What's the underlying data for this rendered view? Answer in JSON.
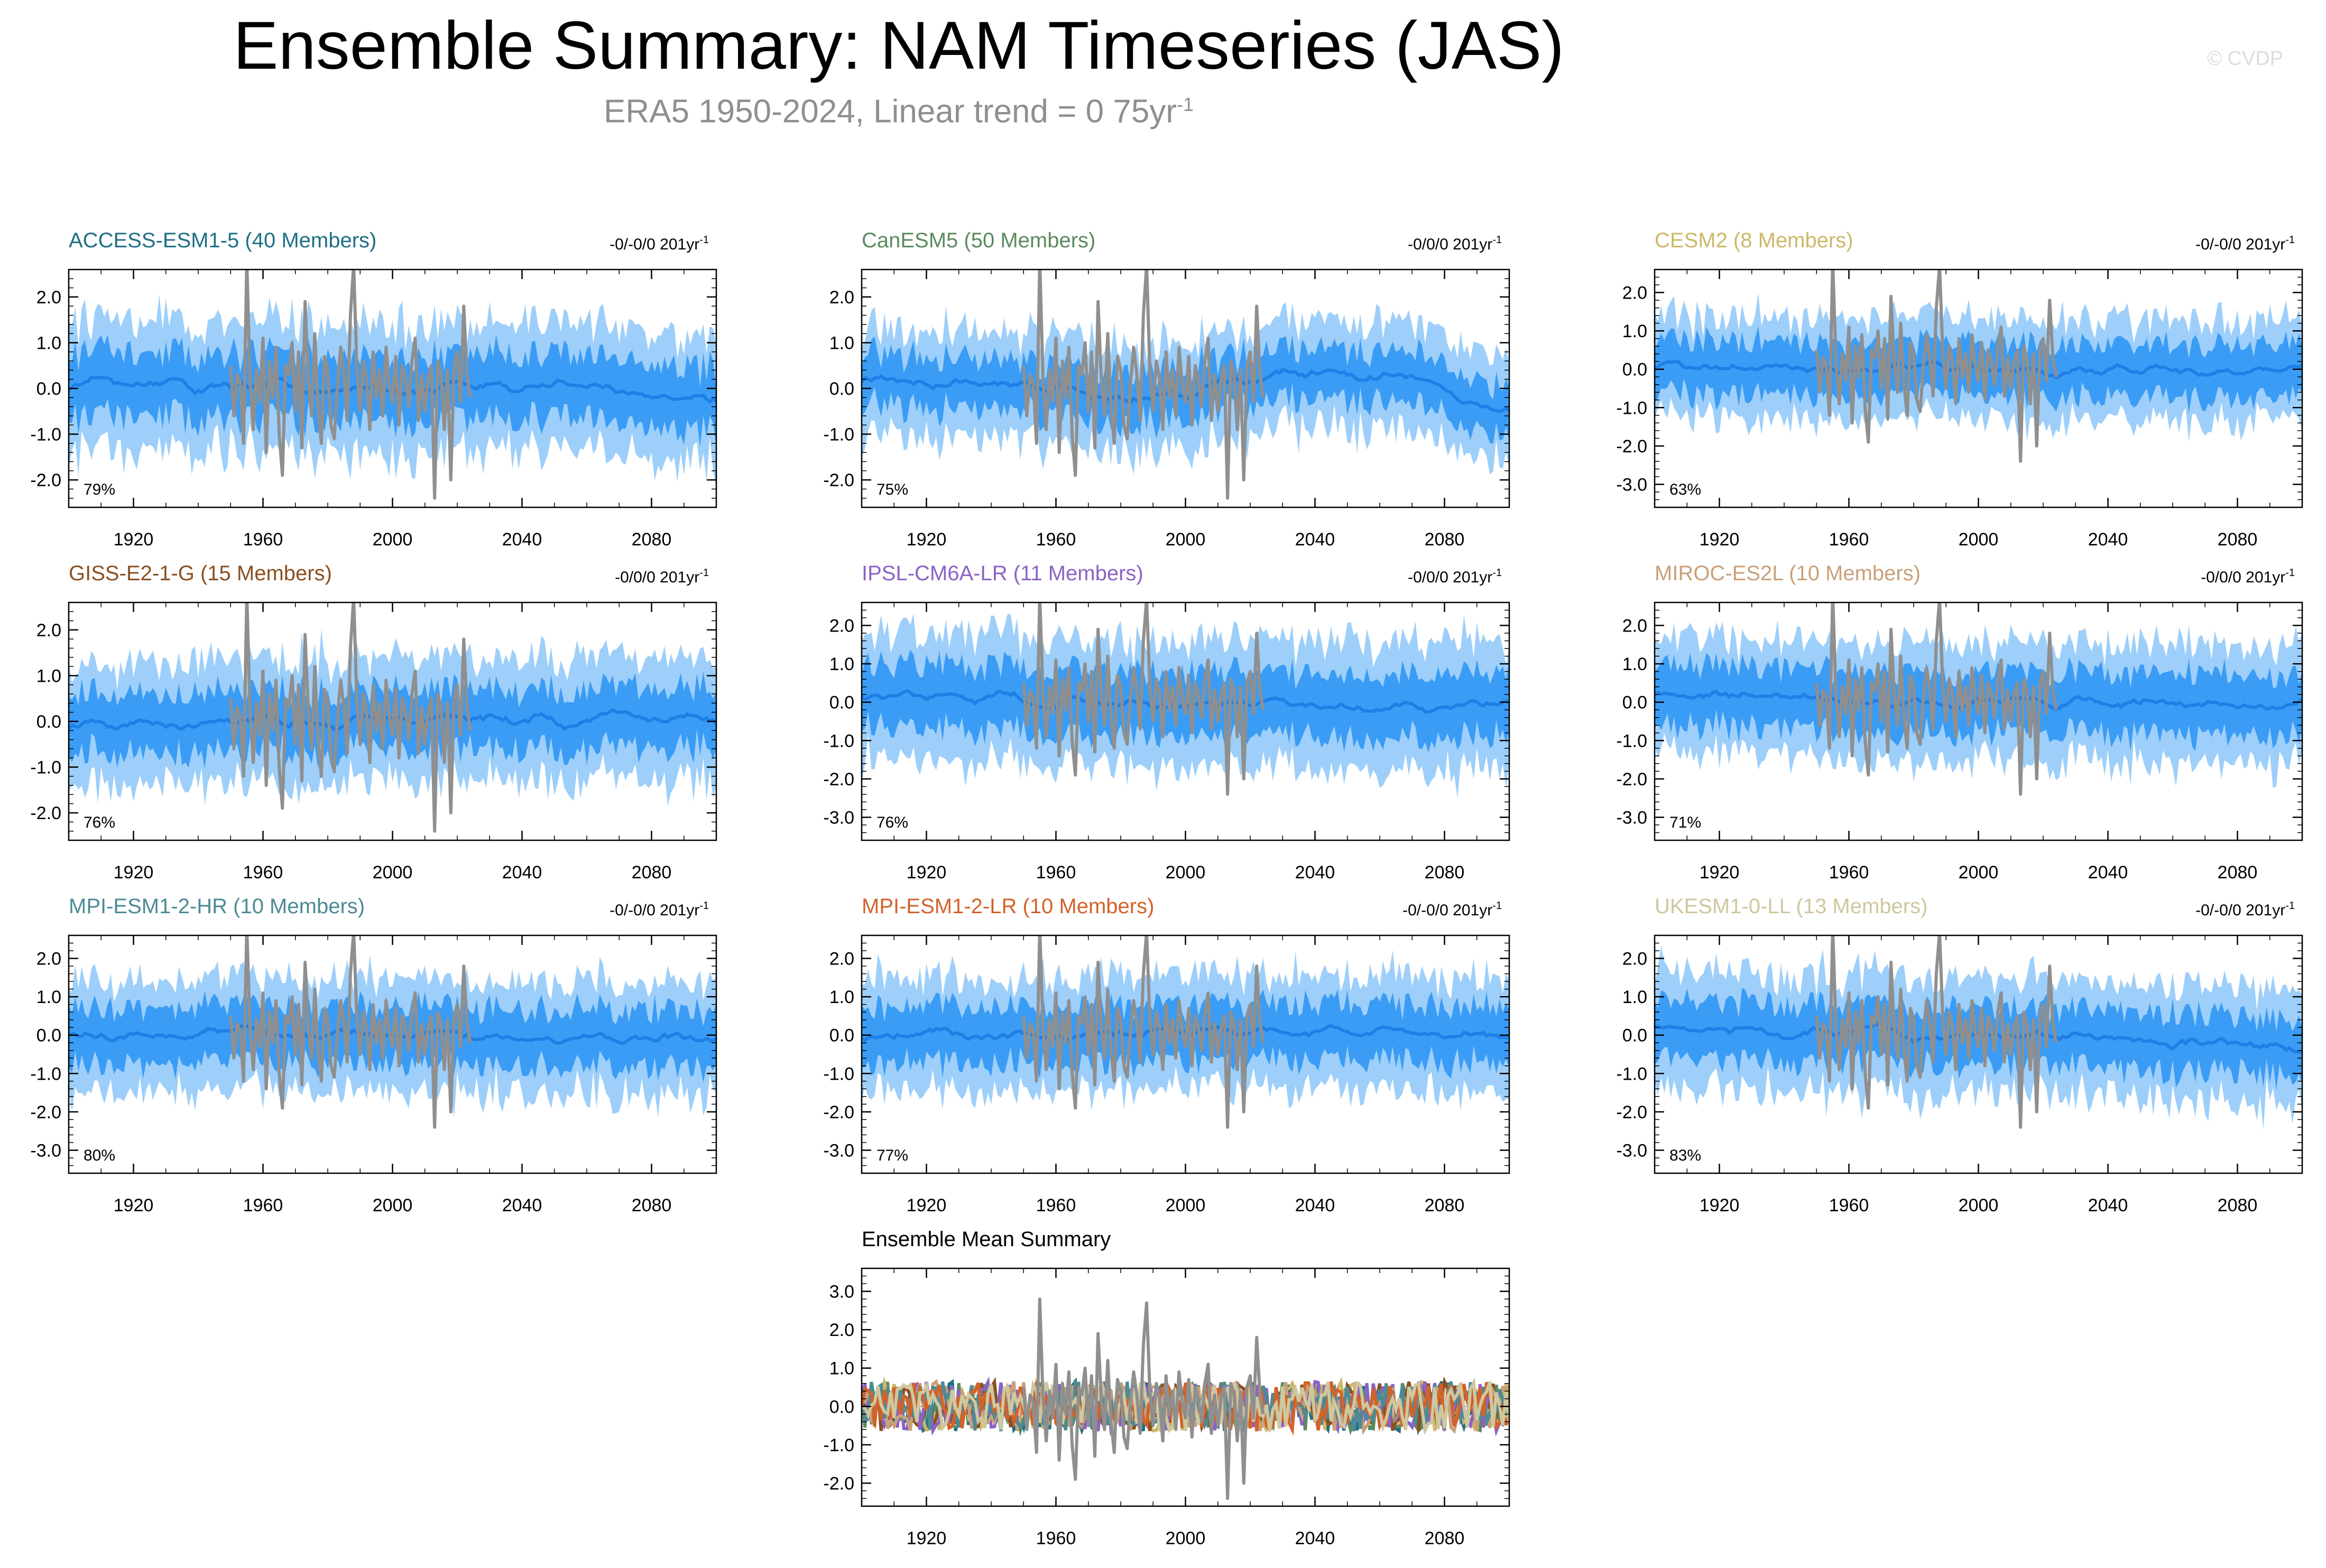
{
  "title": "Ensemble Summary: NAM Timeseries (JAS)",
  "subtitle": "ERA5 1950-2024, Linear trend = 0 75yr",
  "subtitle_sup": "-1",
  "watermark": "© CVDP",
  "colors": {
    "outer_band": "#9dcffa",
    "inner_band": "#3a9cf5",
    "ens_mean_line": "#1f7fe6",
    "obs_line": "#8f8f8f"
  },
  "chart_data": [
    {
      "type": "area",
      "title": "ACCESS-ESM1-5 (40 Members)",
      "title_color": "#1f6f85",
      "trend_label": "-0/-0/0 201yr",
      "trend_sup": "-1",
      "pct_label": "79%",
      "ylim": [
        -2.6,
        2.6
      ],
      "yticks": [
        2.0,
        1.0,
        0.0,
        -1.0,
        -2.0
      ],
      "ytick_labels": [
        "2.0",
        "1.0",
        "0.0",
        "-1.0",
        "-2.0"
      ],
      "xlim": [
        1900,
        2100
      ],
      "xticks": [
        1920,
        1960,
        2000,
        2040,
        2080
      ],
      "xtick_labels": [
        "1920",
        "1960",
        "2000",
        "2040",
        "2080"
      ],
      "seed": 11,
      "band_inner": 0.75,
      "band_outer": 1.5,
      "mean_shape": [
        [
          1900,
          0.1
        ],
        [
          1960,
          0.0
        ],
        [
          2000,
          -0.05
        ],
        [
          2050,
          0.1
        ],
        [
          2100,
          -0.3
        ]
      ]
    },
    {
      "type": "area",
      "title": "CanESM5 (50 Members)",
      "title_color": "#5b8a5f",
      "trend_label": "-0/0/0 201yr",
      "trend_sup": "-1",
      "pct_label": "75%",
      "ylim": [
        -2.6,
        2.6
      ],
      "yticks": [
        2.0,
        1.0,
        0.0,
        -1.0,
        -2.0
      ],
      "ytick_labels": [
        "2.0",
        "1.0",
        "0.0",
        "-1.0",
        "-2.0"
      ],
      "xlim": [
        1900,
        2100
      ],
      "xticks": [
        1920,
        1960,
        2000,
        2040,
        2080
      ],
      "xtick_labels": [
        "1920",
        "1960",
        "2000",
        "2040",
        "2080"
      ],
      "seed": 23,
      "band_inner": 0.6,
      "band_outer": 1.25,
      "mean_shape": [
        [
          1900,
          0.2
        ],
        [
          1950,
          0.0
        ],
        [
          1990,
          -0.2
        ],
        [
          2030,
          0.35
        ],
        [
          2070,
          0.2
        ],
        [
          2100,
          -0.6
        ]
      ]
    },
    {
      "type": "area",
      "title": "CESM2 (8 Members)",
      "title_color": "#cdb86a",
      "trend_label": "-0/-0/0 201yr",
      "trend_sup": "-1",
      "pct_label": "63%",
      "ylim": [
        -3.6,
        2.6
      ],
      "yticks": [
        2.0,
        1.0,
        0.0,
        -1.0,
        -2.0,
        -3.0
      ],
      "ytick_labels": [
        "2.0",
        "1.0",
        "0.0",
        "-1.0",
        "-2.0",
        "-3.0"
      ],
      "xlim": [
        1900,
        2100
      ],
      "xticks": [
        1920,
        1960,
        2000,
        2040,
        2080
      ],
      "xtick_labels": [
        "1920",
        "1960",
        "2000",
        "2040",
        "2080"
      ],
      "seed": 37,
      "band_inner": 0.75,
      "band_outer": 1.45,
      "mean_shape": [
        [
          1900,
          0.05
        ],
        [
          2000,
          0.0
        ],
        [
          2100,
          -0.05
        ]
      ]
    },
    {
      "type": "area",
      "title": "GISS-E2-1-G (15 Members)",
      "title_color": "#8a5022",
      "trend_label": "-0/0/0 201yr",
      "trend_sup": "-1",
      "pct_label": "76%",
      "ylim": [
        -2.6,
        2.6
      ],
      "yticks": [
        2.0,
        1.0,
        0.0,
        -1.0,
        -2.0
      ],
      "ytick_labels": [
        "2.0",
        "1.0",
        "0.0",
        "-1.0",
        "-2.0"
      ],
      "xlim": [
        1900,
        2100
      ],
      "xticks": [
        1920,
        1960,
        2000,
        2040,
        2080
      ],
      "xtick_labels": [
        "1920",
        "1960",
        "2000",
        "2040",
        "2080"
      ],
      "seed": 41,
      "band_inner": 0.7,
      "band_outer": 1.45,
      "mean_shape": [
        [
          1900,
          0.0
        ],
        [
          2000,
          0.0
        ],
        [
          2100,
          0.1
        ]
      ]
    },
    {
      "type": "area",
      "title": "IPSL-CM6A-LR (11 Members)",
      "title_color": "#8a62c6",
      "trend_label": "-0/0/0 201yr",
      "trend_sup": "-1",
      "pct_label": "76%",
      "ylim": [
        -3.6,
        2.6
      ],
      "yticks": [
        2.0,
        1.0,
        0.0,
        -1.0,
        -2.0,
        -3.0
      ],
      "ytick_labels": [
        "2.0",
        "1.0",
        "0.0",
        "-1.0",
        "-2.0",
        "-3.0"
      ],
      "xlim": [
        1900,
        2100
      ],
      "xticks": [
        1920,
        1960,
        2000,
        2040,
        2080
      ],
      "xtick_labels": [
        "1920",
        "1960",
        "2000",
        "2040",
        "2080"
      ],
      "seed": 53,
      "band_inner": 0.9,
      "band_outer": 1.8,
      "mean_shape": [
        [
          1900,
          0.2
        ],
        [
          2000,
          -0.05
        ],
        [
          2100,
          -0.1
        ]
      ]
    },
    {
      "type": "area",
      "title": "MIROC-ES2L (10 Members)",
      "title_color": "#c9a07a",
      "trend_label": "-0/0/0 201yr",
      "trend_sup": "-1",
      "pct_label": "71%",
      "ylim": [
        -3.6,
        2.6
      ],
      "yticks": [
        2.0,
        1.0,
        0.0,
        -1.0,
        -2.0,
        -3.0
      ],
      "ytick_labels": [
        "2.0",
        "1.0",
        "0.0",
        "-1.0",
        "-2.0",
        "-3.0"
      ],
      "xlim": [
        1900,
        2100
      ],
      "xticks": [
        1920,
        1960,
        2000,
        2040,
        2080
      ],
      "xtick_labels": [
        "1920",
        "1960",
        "2000",
        "2040",
        "2080"
      ],
      "seed": 67,
      "band_inner": 0.85,
      "band_outer": 1.65,
      "mean_shape": [
        [
          1900,
          0.25
        ],
        [
          1960,
          0.0
        ],
        [
          2100,
          -0.1
        ]
      ]
    },
    {
      "type": "area",
      "title": "MPI-ESM1-2-HR (10 Members)",
      "title_color": "#4c8a96",
      "trend_label": "-0/-0/0 201yr",
      "trend_sup": "-1",
      "pct_label": "80%",
      "ylim": [
        -3.6,
        2.6
      ],
      "yticks": [
        2.0,
        1.0,
        0.0,
        -1.0,
        -2.0,
        -3.0
      ],
      "ytick_labels": [
        "2.0",
        "1.0",
        "0.0",
        "-1.0",
        "-2.0",
        "-3.0"
      ],
      "xlim": [
        1900,
        2100
      ],
      "xticks": [
        1920,
        1960,
        2000,
        2040,
        2080
      ],
      "xtick_labels": [
        "1920",
        "1960",
        "2000",
        "2040",
        "2080"
      ],
      "seed": 71,
      "band_inner": 0.8,
      "band_outer": 1.6,
      "mean_shape": [
        [
          1900,
          0.0
        ],
        [
          2000,
          0.0
        ],
        [
          2100,
          -0.1
        ]
      ]
    },
    {
      "type": "area",
      "title": "MPI-ESM1-2-LR (10 Members)",
      "title_color": "#d2622a",
      "trend_label": "-0/-0/0 201yr",
      "trend_sup": "-1",
      "pct_label": "77%",
      "ylim": [
        -3.6,
        2.6
      ],
      "yticks": [
        2.0,
        1.0,
        0.0,
        -1.0,
        -2.0,
        -3.0
      ],
      "ytick_labels": [
        "2.0",
        "1.0",
        "0.0",
        "-1.0",
        "-2.0",
        "-3.0"
      ],
      "xlim": [
        1900,
        2100
      ],
      "xticks": [
        1920,
        1960,
        2000,
        2040,
        2080
      ],
      "xtick_labels": [
        "1920",
        "1960",
        "2000",
        "2040",
        "2080"
      ],
      "seed": 83,
      "band_inner": 0.8,
      "band_outer": 1.6,
      "mean_shape": [
        [
          1900,
          0.0
        ],
        [
          2000,
          0.05
        ],
        [
          2100,
          0.05
        ]
      ]
    },
    {
      "type": "area",
      "title": "UKESM1-0-LL (13 Members)",
      "title_color": "#cfc79e",
      "trend_label": "-0/-0/0 201yr",
      "trend_sup": "-1",
      "pct_label": "83%",
      "ylim": [
        -3.6,
        2.6
      ],
      "yticks": [
        2.0,
        1.0,
        0.0,
        -1.0,
        -2.0,
        -3.0
      ],
      "ytick_labels": [
        "2.0",
        "1.0",
        "0.0",
        "-1.0",
        "-2.0",
        "-3.0"
      ],
      "xlim": [
        1900,
        2100
      ],
      "xticks": [
        1920,
        1960,
        2000,
        2040,
        2080
      ],
      "xtick_labels": [
        "1920",
        "1960",
        "2000",
        "2040",
        "2080"
      ],
      "seed": 97,
      "band_inner": 0.8,
      "band_outer": 1.65,
      "mean_shape": [
        [
          1900,
          0.1
        ],
        [
          2000,
          0.0
        ],
        [
          2100,
          -0.3
        ]
      ]
    },
    {
      "type": "line",
      "title": "Ensemble Mean Summary",
      "title_color": "#000000",
      "ylim": [
        -2.6,
        3.6
      ],
      "yticks": [
        3.0,
        2.0,
        1.0,
        0.0,
        -1.0,
        -2.0
      ],
      "ytick_labels": [
        "3.0",
        "2.0",
        "1.0",
        "0.0",
        "-1.0",
        "-2.0"
      ],
      "xlim": [
        1900,
        2100
      ],
      "xticks": [
        1920,
        1960,
        2000,
        2040,
        2080
      ],
      "xtick_labels": [
        "1920",
        "1960",
        "2000",
        "2040",
        "2080"
      ],
      "series_colors": [
        "#1f6f85",
        "#5b8a5f",
        "#cdb86a",
        "#8a5022",
        "#8a62c6",
        "#c9a07a",
        "#4c8a96",
        "#d2622a",
        "#cfc79e"
      ]
    }
  ],
  "observed_series": {
    "name": "ERA5",
    "years": [
      1950,
      2024
    ],
    "values": [
      0.5,
      -0.6,
      0.3,
      0.1,
      -1.2,
      2.8,
      0.2,
      -0.9,
      0.4,
      -0.3,
      1.1,
      -1.4,
      0.6,
      -0.2,
      0.9,
      -1.0,
      -1.9,
      0.5,
      0.3,
      1.0,
      -0.5,
      0.8,
      -1.3,
      1.9,
      0.2,
      -0.6,
      1.2,
      -0.4,
      -1.2,
      0.7,
      0.4,
      -0.8,
      -1.1,
      0.1,
      0.9,
      0.3,
      -0.7,
      1.6,
      2.7,
      0.4,
      -0.5,
      0.6,
      0.2,
      -0.9,
      0.8,
      -0.2,
      0.4,
      -0.6,
      0.9,
      0.1,
      -0.3,
      0.7,
      -0.8,
      0.5,
      0.2,
      -0.4,
      0.6,
      1.1,
      -0.7,
      0.3,
      -0.5,
      0.2,
      0.5,
      -2.4,
      0.6,
      0.3,
      -0.9,
      0.4,
      -2.0,
      0.5,
      0.8,
      -0.3,
      1.8,
      0.3,
      -0.2
    ]
  }
}
